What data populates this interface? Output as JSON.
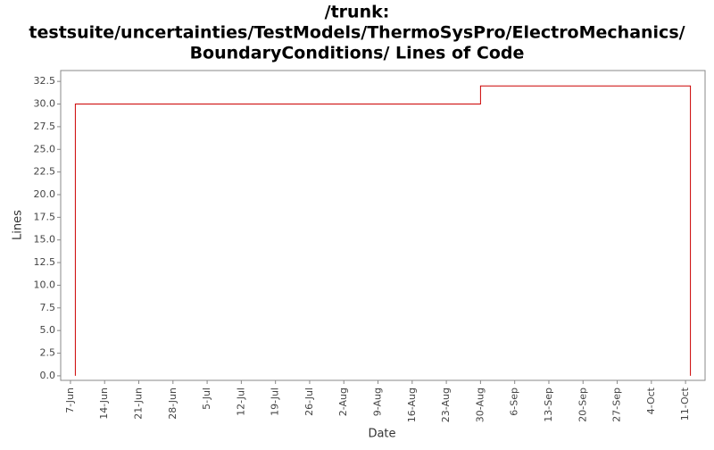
{
  "chart_data": {
    "type": "line",
    "step": "post",
    "title": [
      "/trunk:",
      "testsuite/uncertainties/TestModels/ThermoSysPro/ElectroMechanics/",
      "BoundaryConditions/ Lines of Code"
    ],
    "x_label": "Date",
    "y_label": "Lines",
    "x": [
      "06-08",
      "06-08",
      "08-30",
      "10-12"
    ],
    "series": [
      {
        "name": "Lines",
        "color": "#cc0000",
        "values": [
          0,
          30,
          32,
          0
        ]
      }
    ],
    "xlim": [
      "06-05",
      "10-15"
    ],
    "xticks": [
      {
        "value": "06-07",
        "label": "7-Jun"
      },
      {
        "value": "06-14",
        "label": "14-Jun"
      },
      {
        "value": "06-21",
        "label": "21-Jun"
      },
      {
        "value": "06-28",
        "label": "28-Jun"
      },
      {
        "value": "07-05",
        "label": "5-Jul"
      },
      {
        "value": "07-12",
        "label": "12-Jul"
      },
      {
        "value": "07-19",
        "label": "19-Jul"
      },
      {
        "value": "07-26",
        "label": "26-Jul"
      },
      {
        "value": "08-02",
        "label": "2-Aug"
      },
      {
        "value": "08-09",
        "label": "9-Aug"
      },
      {
        "value": "08-16",
        "label": "16-Aug"
      },
      {
        "value": "08-23",
        "label": "23-Aug"
      },
      {
        "value": "08-30",
        "label": "30-Aug"
      },
      {
        "value": "09-06",
        "label": "6-Sep"
      },
      {
        "value": "09-13",
        "label": "13-Sep"
      },
      {
        "value": "09-20",
        "label": "20-Sep"
      },
      {
        "value": "09-27",
        "label": "27-Sep"
      },
      {
        "value": "10-04",
        "label": "4-Oct"
      },
      {
        "value": "10-11",
        "label": "11-Oct"
      }
    ],
    "ylim": [
      -0.5,
      33.7
    ],
    "yticks": [
      {
        "value": 0,
        "label": "0.0"
      },
      2.5,
      {
        "value": 5,
        "label": "5.0"
      },
      7.5,
      {
        "value": 10,
        "label": "10.0"
      },
      12.5,
      {
        "value": 15,
        "label": "15.0"
      },
      17.5,
      {
        "value": 20,
        "label": "20.0"
      },
      22.5,
      {
        "value": 25,
        "label": "25.0"
      },
      27.5,
      {
        "value": 30,
        "label": "30.0"
      },
      32.5
    ]
  }
}
